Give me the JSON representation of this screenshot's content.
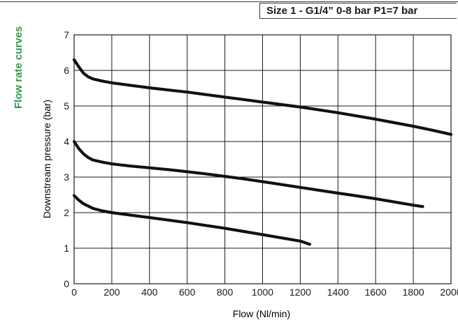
{
  "header": {
    "side_title": "Flow rate curves",
    "size_label": "Size 1 - G1/4” 0-8 bar P1=7 bar"
  },
  "colors": {
    "accent": "#2e9a4a",
    "curve": "#111111",
    "grid": "#1a1a1a",
    "text": "#1a1a1a"
  },
  "chart_data": {
    "type": "line",
    "title": "",
    "xlabel": "Flow (Nl/min)",
    "ylabel": "Downstream pressure (bar)",
    "xlim": [
      0,
      2000
    ],
    "ylim": [
      0,
      7
    ],
    "grid": true,
    "x_ticks": [
      0,
      200,
      400,
      600,
      800,
      1000,
      1200,
      1400,
      1600,
      1800,
      2000
    ],
    "y_ticks": [
      0,
      1,
      2,
      3,
      4,
      5,
      6,
      7
    ],
    "series": [
      {
        "x": [
          0,
          25,
          50,
          75,
          100,
          150,
          200,
          300,
          400,
          500,
          600,
          700,
          800,
          900,
          1000,
          1100,
          1200,
          1300,
          1400,
          1500,
          1600,
          1700,
          1800,
          1900,
          2000
        ],
        "y": [
          6.3,
          6.1,
          5.92,
          5.82,
          5.76,
          5.7,
          5.65,
          5.58,
          5.51,
          5.45,
          5.39,
          5.32,
          5.25,
          5.18,
          5.11,
          5.04,
          4.97,
          4.89,
          4.81,
          4.72,
          4.63,
          4.53,
          4.43,
          4.32,
          4.2
        ]
      },
      {
        "x": [
          0,
          25,
          50,
          75,
          100,
          150,
          200,
          300,
          400,
          500,
          600,
          700,
          800,
          900,
          1000,
          1100,
          1200,
          1300,
          1400,
          1500,
          1600,
          1700,
          1800,
          1850
        ],
        "y": [
          4.0,
          3.8,
          3.65,
          3.55,
          3.48,
          3.42,
          3.37,
          3.31,
          3.26,
          3.21,
          3.15,
          3.09,
          3.02,
          2.95,
          2.87,
          2.79,
          2.71,
          2.63,
          2.55,
          2.47,
          2.39,
          2.3,
          2.21,
          2.17
        ]
      },
      {
        "x": [
          0,
          25,
          50,
          100,
          150,
          200,
          300,
          400,
          500,
          600,
          700,
          800,
          900,
          1000,
          1100,
          1200,
          1250
        ],
        "y": [
          2.48,
          2.35,
          2.25,
          2.12,
          2.05,
          2.0,
          1.93,
          1.86,
          1.79,
          1.72,
          1.64,
          1.56,
          1.47,
          1.38,
          1.29,
          1.2,
          1.11
        ]
      }
    ]
  }
}
